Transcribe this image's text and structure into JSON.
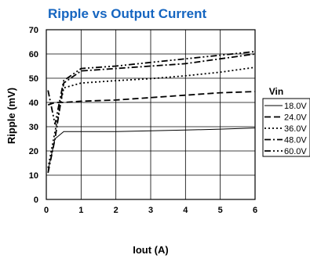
{
  "chart_data": {
    "type": "line",
    "title": "Ripple vs Output Current",
    "xlabel": "Iout (A)",
    "ylabel": "Ripple (mV)",
    "xlim": [
      0,
      6
    ],
    "ylim": [
      0,
      70
    ],
    "xticks": [
      "0",
      "1",
      "2",
      "3",
      "4",
      "5",
      "6"
    ],
    "yticks": [
      "0",
      "10",
      "20",
      "30",
      "40",
      "50",
      "60",
      "70"
    ],
    "grid": true,
    "legend_title": "Vin",
    "legend_position": "right",
    "series": [
      {
        "name": "18.0V",
        "dash": "solid",
        "x": [
          0.05,
          0.25,
          0.5,
          1,
          2,
          3,
          4,
          5,
          6
        ],
        "y": [
          12,
          25,
          28,
          28,
          28,
          28.3,
          28.6,
          29,
          29.5
        ]
      },
      {
        "name": "24.0V",
        "dash": "dash",
        "x": [
          0.05,
          0.25,
          0.5,
          1,
          2,
          3,
          4,
          5,
          6
        ],
        "y": [
          39,
          40,
          40,
          40.5,
          41,
          42,
          43,
          44,
          44.5
        ]
      },
      {
        "name": "36.0V",
        "dash": "dot",
        "x": [
          0.05,
          0.25,
          0.5,
          1,
          2,
          3,
          4,
          5,
          6
        ],
        "y": [
          13,
          28,
          46,
          48,
          49,
          49.8,
          51,
          52.5,
          54.5
        ]
      },
      {
        "name": "48.0V",
        "dash": "dashdot",
        "x": [
          0.05,
          0.25,
          0.5,
          1,
          2,
          3,
          4,
          5,
          6
        ],
        "y": [
          11,
          25,
          48,
          53,
          54,
          55,
          56,
          58,
          60
        ]
      },
      {
        "name": "60.0V",
        "dash": "dashdotdot",
        "x": [
          0.05,
          0.25,
          0.5,
          1,
          2,
          3,
          4,
          5,
          6
        ],
        "y": [
          45,
          31,
          49,
          54,
          55,
          56.5,
          58,
          59.5,
          61
        ]
      }
    ]
  }
}
